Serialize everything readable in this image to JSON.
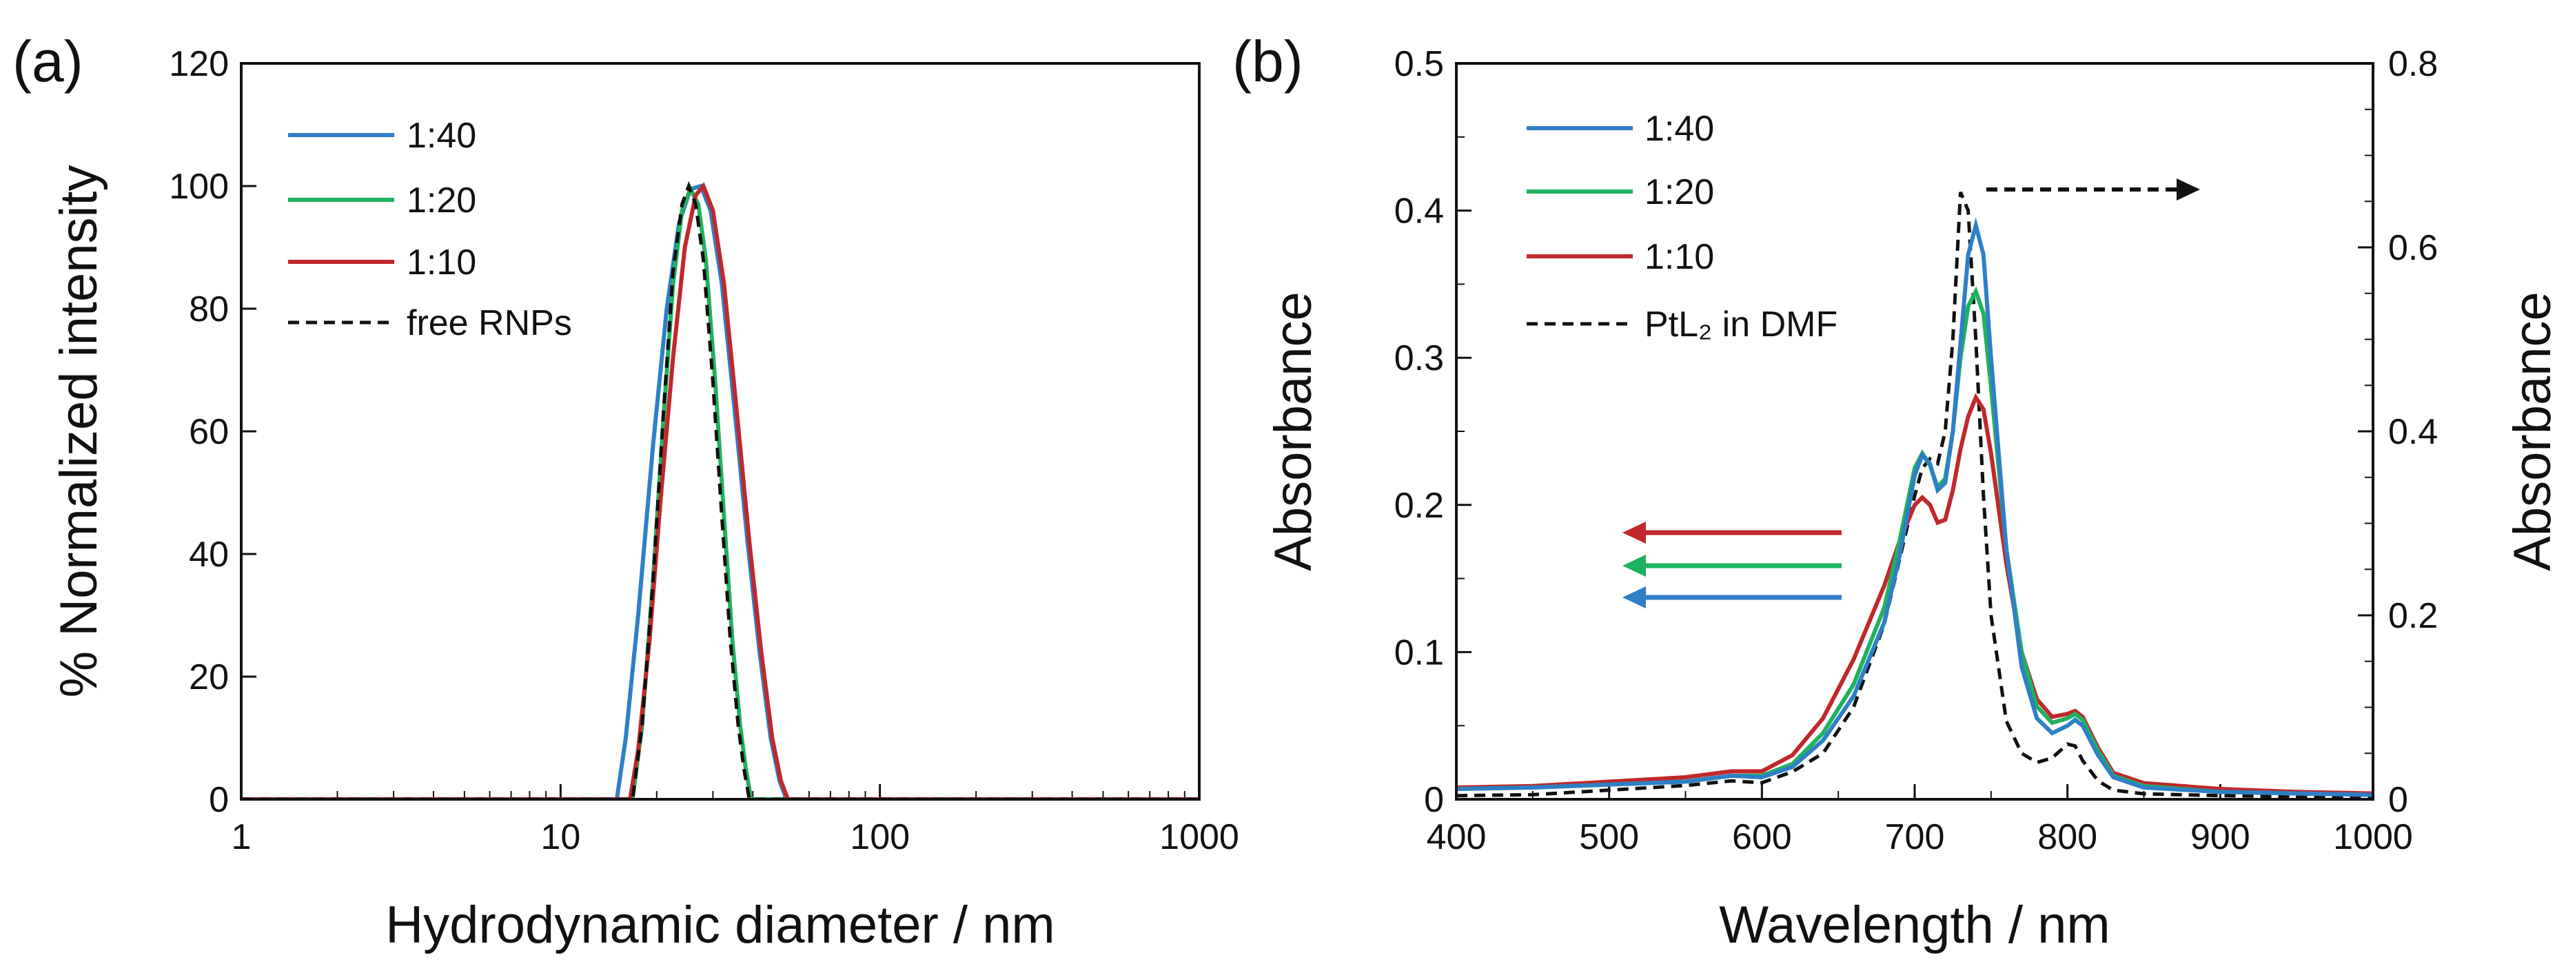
{
  "colors": {
    "blue": "#2e7fc6",
    "green": "#1fb25e",
    "red": "#c0282b",
    "black": "#111111"
  },
  "chart_data": [
    {
      "panel_label": "(a)",
      "type": "line",
      "xscale": "log",
      "xlim": [
        1,
        1000
      ],
      "ylim": [
        0,
        120
      ],
      "xticks": [
        1,
        10,
        100,
        1000
      ],
      "xtick_labels": [
        "1",
        "10",
        "100",
        "1000"
      ],
      "yticks": [
        0,
        20,
        40,
        60,
        80,
        100,
        120
      ],
      "ytick_labels": [
        "0",
        "20",
        "40",
        "60",
        "80",
        "100",
        "120"
      ],
      "xlabel": "Hydrodynamic diameter / nm",
      "ylabel": "% Normalized intensity",
      "legend_position": "top-left",
      "series": [
        {
          "name": "1:40",
          "color": "#2e7fc6",
          "dash": "solid",
          "x": [
            1,
            15.0,
            16.0,
            17.5,
            19.5,
            21.5,
            23.5,
            25.5,
            27.5,
            29.5,
            32.0,
            35.0,
            38.5,
            42.0,
            45.5,
            48.5,
            51.0,
            1000
          ],
          "y": [
            0,
            0,
            10,
            30,
            58,
            80,
            94,
            99.5,
            100,
            96,
            84,
            64,
            42,
            24,
            10,
            3,
            0,
            0
          ]
        },
        {
          "name": "1:20",
          "color": "#1fb25e",
          "dash": "solid",
          "x": [
            1,
            16.8,
            18.0,
            19.5,
            21.0,
            22.5,
            24.0,
            25.5,
            27.0,
            28.5,
            30.5,
            32.5,
            34.5,
            36.5,
            38.0,
            39.5,
            1000
          ],
          "y": [
            0,
            0,
            12,
            36,
            62,
            84,
            96,
            99.5,
            97,
            88,
            68,
            46,
            26,
            12,
            5,
            0,
            0
          ]
        },
        {
          "name": "1:10",
          "color": "#c0282b",
          "dash": "solid",
          "x": [
            1,
            16.5,
            17.5,
            19.0,
            20.5,
            22.5,
            24.5,
            26.5,
            28.0,
            30.0,
            32.5,
            35.5,
            39.0,
            42.5,
            46.0,
            49.0,
            51.5,
            1000
          ],
          "y": [
            0,
            0,
            8,
            26,
            48,
            72,
            90,
            98.5,
            100,
            96,
            84,
            64,
            42,
            24,
            10,
            3,
            0,
            0
          ]
        },
        {
          "name": "free RNPs",
          "color": "#111111",
          "dash": "dashed",
          "x": [
            1,
            16.8,
            18.0,
            19.5,
            21.0,
            22.5,
            24.0,
            25.2,
            26.5,
            28.0,
            30.0,
            32.0,
            34.0,
            36.0,
            37.5,
            39.0,
            1000
          ],
          "y": [
            0,
            0,
            12,
            36,
            63,
            86,
            97,
            100,
            97,
            88,
            68,
            46,
            26,
            12,
            5,
            0,
            0
          ]
        }
      ]
    },
    {
      "panel_label": "(b)",
      "type": "line",
      "xlim": [
        400,
        1000
      ],
      "ylim": [
        0,
        0.5
      ],
      "y2lim": [
        0,
        0.8
      ],
      "xticks": [
        400,
        500,
        600,
        700,
        800,
        900,
        1000
      ],
      "xtick_labels": [
        "400",
        "500",
        "600",
        "700",
        "800",
        "900",
        "1000"
      ],
      "yticks": [
        0,
        0.1,
        0.2,
        0.3,
        0.4,
        0.5
      ],
      "ytick_labels": [
        "0",
        "0.1",
        "0.2",
        "0.3",
        "0.4",
        "0.5"
      ],
      "y2ticks": [
        0,
        0.2,
        0.4,
        0.6,
        0.8
      ],
      "y2tick_labels": [
        "0",
        "0.2",
        "0.4",
        "0.6",
        "0.8"
      ],
      "xlabel": "Wavelength  / nm",
      "ylabel": "Absorbance",
      "y2label": "Absorbance",
      "legend_position": "top-left",
      "series": [
        {
          "name": "1:40",
          "color": "#2e7fc6",
          "dash": "solid",
          "axis": "left",
          "x": [
            400,
            450,
            500,
            550,
            580,
            600,
            620,
            640,
            660,
            680,
            690,
            700,
            705,
            710,
            715,
            720,
            725,
            730,
            735,
            740,
            745,
            750,
            760,
            770,
            780,
            790,
            800,
            805,
            810,
            820,
            830,
            850,
            900,
            950,
            1000
          ],
          "y": [
            0.007,
            0.008,
            0.01,
            0.012,
            0.016,
            0.015,
            0.022,
            0.04,
            0.07,
            0.12,
            0.165,
            0.22,
            0.234,
            0.228,
            0.21,
            0.215,
            0.25,
            0.31,
            0.37,
            0.39,
            0.37,
            0.3,
            0.17,
            0.09,
            0.055,
            0.045,
            0.05,
            0.054,
            0.05,
            0.03,
            0.015,
            0.008,
            0.005,
            0.004,
            0.003
          ]
        },
        {
          "name": "1:20",
          "color": "#1fb25e",
          "dash": "solid",
          "axis": "left",
          "x": [
            400,
            450,
            500,
            550,
            580,
            600,
            620,
            640,
            660,
            680,
            690,
            700,
            705,
            710,
            715,
            720,
            725,
            730,
            735,
            740,
            745,
            750,
            760,
            770,
            780,
            790,
            800,
            805,
            810,
            820,
            830,
            850,
            900,
            950,
            1000
          ],
          "y": [
            0.007,
            0.008,
            0.01,
            0.012,
            0.016,
            0.016,
            0.024,
            0.045,
            0.078,
            0.13,
            0.175,
            0.225,
            0.235,
            0.227,
            0.212,
            0.218,
            0.25,
            0.3,
            0.335,
            0.345,
            0.33,
            0.28,
            0.17,
            0.1,
            0.063,
            0.052,
            0.055,
            0.058,
            0.054,
            0.033,
            0.016,
            0.009,
            0.005,
            0.004,
            0.003
          ]
        },
        {
          "name": "1:10",
          "color": "#c0282b",
          "dash": "solid",
          "axis": "left",
          "x": [
            400,
            450,
            500,
            550,
            580,
            600,
            620,
            640,
            660,
            680,
            690,
            700,
            705,
            710,
            715,
            720,
            725,
            730,
            735,
            740,
            745,
            750,
            760,
            770,
            780,
            790,
            800,
            805,
            810,
            820,
            830,
            850,
            900,
            950,
            1000
          ],
          "y": [
            0.008,
            0.009,
            0.012,
            0.015,
            0.019,
            0.019,
            0.03,
            0.055,
            0.095,
            0.145,
            0.175,
            0.2,
            0.205,
            0.2,
            0.188,
            0.19,
            0.21,
            0.238,
            0.26,
            0.273,
            0.265,
            0.235,
            0.16,
            0.1,
            0.068,
            0.056,
            0.058,
            0.06,
            0.056,
            0.035,
            0.018,
            0.011,
            0.007,
            0.005,
            0.004
          ]
        },
        {
          "name": "PtL₂ in DMF",
          "color": "#111111",
          "dash": "dashed",
          "axis": "right",
          "x": [
            400,
            450,
            500,
            550,
            580,
            600,
            620,
            640,
            660,
            680,
            690,
            700,
            705,
            710,
            715,
            720,
            725,
            730,
            735,
            740,
            745,
            750,
            760,
            770,
            780,
            790,
            800,
            805,
            810,
            820,
            830,
            850,
            900,
            950,
            1000
          ],
          "y": [
            0.004,
            0.005,
            0.01,
            0.015,
            0.02,
            0.018,
            0.03,
            0.05,
            0.1,
            0.19,
            0.26,
            0.33,
            0.36,
            0.37,
            0.365,
            0.4,
            0.5,
            0.66,
            0.64,
            0.5,
            0.33,
            0.2,
            0.085,
            0.05,
            0.04,
            0.045,
            0.06,
            0.058,
            0.042,
            0.02,
            0.01,
            0.006,
            0.004,
            0.003,
            0.002
          ]
        }
      ],
      "annotations": [
        {
          "type": "arrow",
          "direction": "left",
          "color": "#c0282b",
          "meaning": "1:10 on left axis"
        },
        {
          "type": "arrow",
          "direction": "left",
          "color": "#1fb25e",
          "meaning": "1:20 on left axis"
        },
        {
          "type": "arrow",
          "direction": "left",
          "color": "#2e7fc6",
          "meaning": "1:40 on left axis"
        },
        {
          "type": "arrow",
          "direction": "right",
          "color": "#111111",
          "style": "dashed",
          "meaning": "PtL₂ in DMF on right axis"
        }
      ]
    }
  ]
}
